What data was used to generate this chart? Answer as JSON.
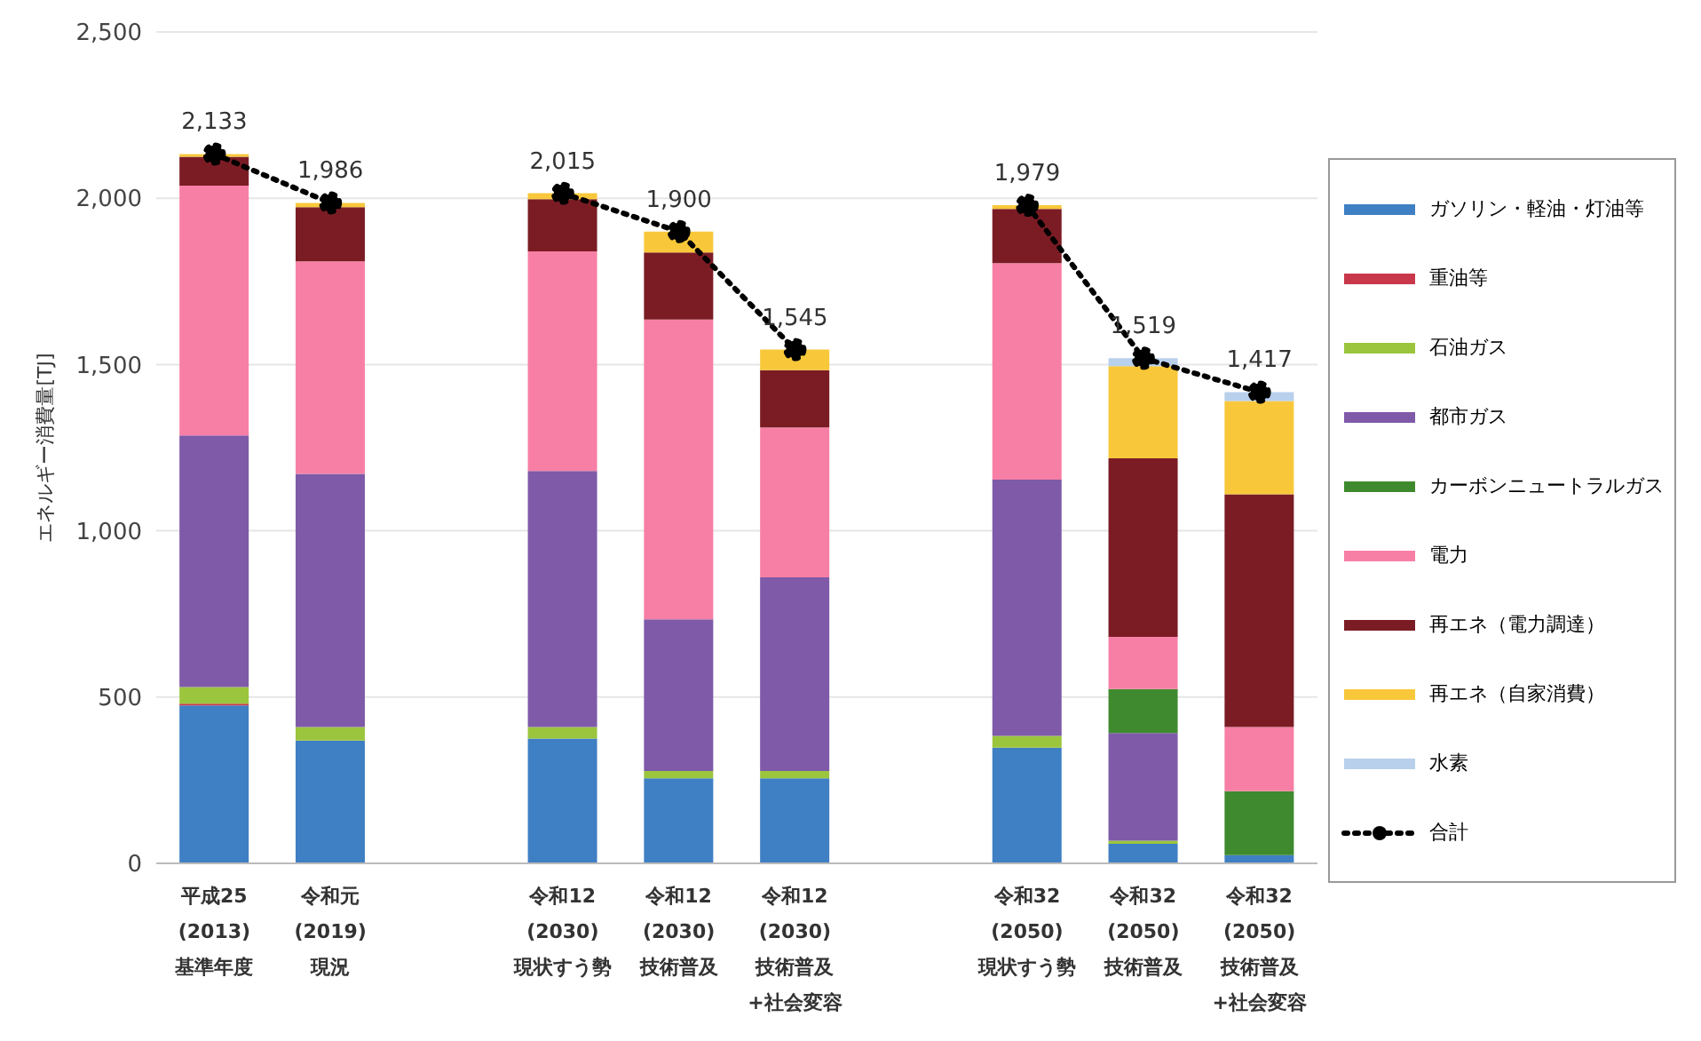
{
  "chart_data": {
    "type": "bar",
    "stacked": true,
    "ylabel": "エネルギー消費量[TJ]",
    "categories": [
      "平成25\n(2013)\n基準年度",
      "令和元\n(2019)\n現況",
      null,
      "令和12\n(2030)\n現状すう勢",
      "令和12\n(2030)\n技術普及",
      "令和12\n(2030)\n技術普及\n+社会変容",
      null,
      "令和32\n(2050)\n現状すう勢",
      "令和32\n(2050)\n技術普及",
      "令和32\n(2050)\n技術普及\n+社会変容"
    ],
    "series": [
      {
        "name": "ガソリン・軽油・灯油等",
        "color": "#3f7fc4",
        "values": [
          475,
          369,
          null,
          375,
          256,
          256,
          null,
          348,
          59,
          25
        ]
      },
      {
        "name": "重油等",
        "color": "#c8384a",
        "values": [
          5,
          0,
          null,
          0,
          0,
          0,
          null,
          0,
          0,
          0
        ]
      },
      {
        "name": "石油ガス",
        "color": "#9bc53d",
        "values": [
          50,
          41,
          null,
          35,
          22,
          22,
          null,
          35,
          9,
          0
        ]
      },
      {
        "name": "都市ガス",
        "color": "#7e5aa8",
        "values": [
          757,
          761,
          null,
          770,
          456,
          582,
          null,
          771,
          324,
          0
        ]
      },
      {
        "name": "カーボンニュートラルガス",
        "color": "#3f8a2f",
        "values": [
          0,
          0,
          null,
          0,
          0,
          0,
          null,
          0,
          132,
          192
        ]
      },
      {
        "name": "電力",
        "color": "#f77fa5",
        "values": [
          751,
          639,
          null,
          660,
          901,
          451,
          null,
          651,
          157,
          193
        ]
      },
      {
        "name": "再エネ（電力調達）",
        "color": "#7b1c24",
        "values": [
          87,
          163,
          null,
          157,
          202,
          172,
          null,
          163,
          537,
          700
        ]
      },
      {
        "name": "再エネ（自家消費）",
        "color": "#f8c83a",
        "values": [
          8,
          13,
          null,
          18,
          63,
          62,
          null,
          11,
          277,
          280
        ]
      },
      {
        "name": "水素",
        "color": "#b8d0ec",
        "values": [
          0,
          0,
          null,
          0,
          0,
          0,
          null,
          0,
          24,
          27
        ]
      },
      {
        "name": "合計",
        "type": "line",
        "color": "#000000",
        "marker": "circle",
        "line_style": "dotted",
        "values": [
          2133,
          1986,
          null,
          2015,
          1900,
          1545,
          null,
          1979,
          1519,
          1417
        ],
        "value_labels": [
          "2,133",
          "1,986",
          null,
          "2,015",
          "1,900",
          "1,545",
          null,
          "1,979",
          "1,519",
          "1,417"
        ]
      }
    ],
    "ylim": [
      0,
      2500
    ],
    "yticks": [
      0,
      {
        "value": 500,
        "label": "500"
      },
      {
        "value": 1000,
        "label": "1,000"
      },
      {
        "value": 1500,
        "label": "1,500"
      },
      {
        "value": 2000,
        "label": "2,000"
      },
      {
        "value": 2500,
        "label": "2,500"
      }
    ],
    "grid": "y",
    "legend": "right"
  }
}
